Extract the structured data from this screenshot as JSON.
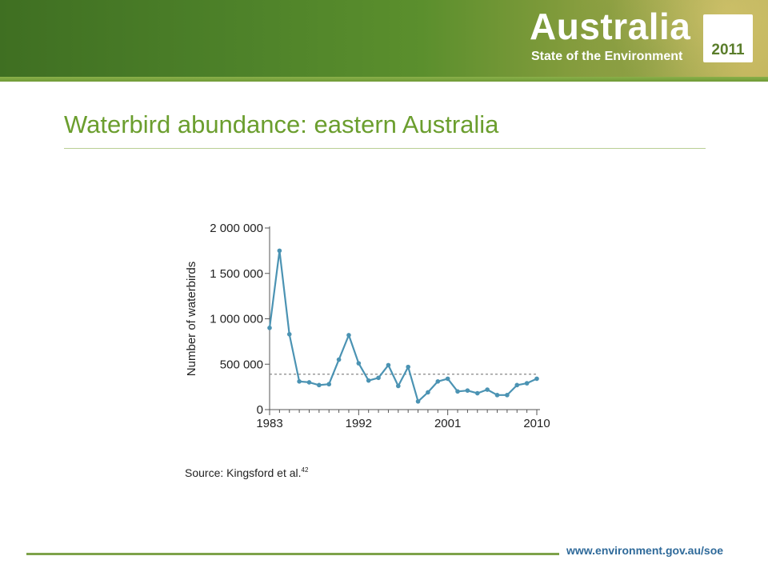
{
  "header": {
    "brand_title": "Australia",
    "brand_subtitle": "State of the Environment",
    "year": "2011"
  },
  "slide": {
    "title": "Waterbird abundance: eastern Australia",
    "source_text": "Source: Kingsford et al.",
    "source_ref": "42"
  },
  "footer": {
    "url": "www.environment.gov.au/soe"
  },
  "colors": {
    "title": "#6b9e2e",
    "series": "#4b93b3",
    "reference_line": "#888888",
    "footer_url": "#2f6a9a"
  },
  "chart_data": {
    "type": "line",
    "title": "",
    "xlabel": "",
    "ylabel": "Number of waterbirds",
    "xlim": [
      1983,
      2010
    ],
    "ylim": [
      0,
      2000000
    ],
    "x_ticks": [
      1983,
      1992,
      2001,
      2010
    ],
    "x_tick_labels": [
      "1983",
      "1992",
      "2001",
      "2010"
    ],
    "y_ticks": [
      0,
      500000,
      1000000,
      1500000,
      2000000
    ],
    "y_tick_labels": [
      "0",
      "500 000",
      "1 000 000",
      "1 500 000",
      "2 000 000"
    ],
    "grid": false,
    "legend": "none",
    "series": [
      {
        "x": [
          1983,
          1984,
          1985,
          1986,
          1987,
          1988,
          1989,
          1990,
          1991,
          1992,
          1993,
          1994,
          1995,
          1996,
          1997,
          1998,
          1999,
          2000,
          2001,
          2002,
          2003,
          2004,
          2005,
          2006,
          2007,
          2008,
          2009,
          2010
        ],
        "y": [
          900000,
          1750000,
          830000,
          310000,
          300000,
          270000,
          280000,
          550000,
          820000,
          510000,
          320000,
          350000,
          490000,
          260000,
          470000,
          90000,
          190000,
          310000,
          340000,
          200000,
          210000,
          180000,
          220000,
          160000,
          160000,
          270000,
          290000,
          340000
        ]
      }
    ],
    "reference_lines": [
      {
        "axis": "y",
        "value": 390000,
        "style": "dashed"
      }
    ]
  }
}
